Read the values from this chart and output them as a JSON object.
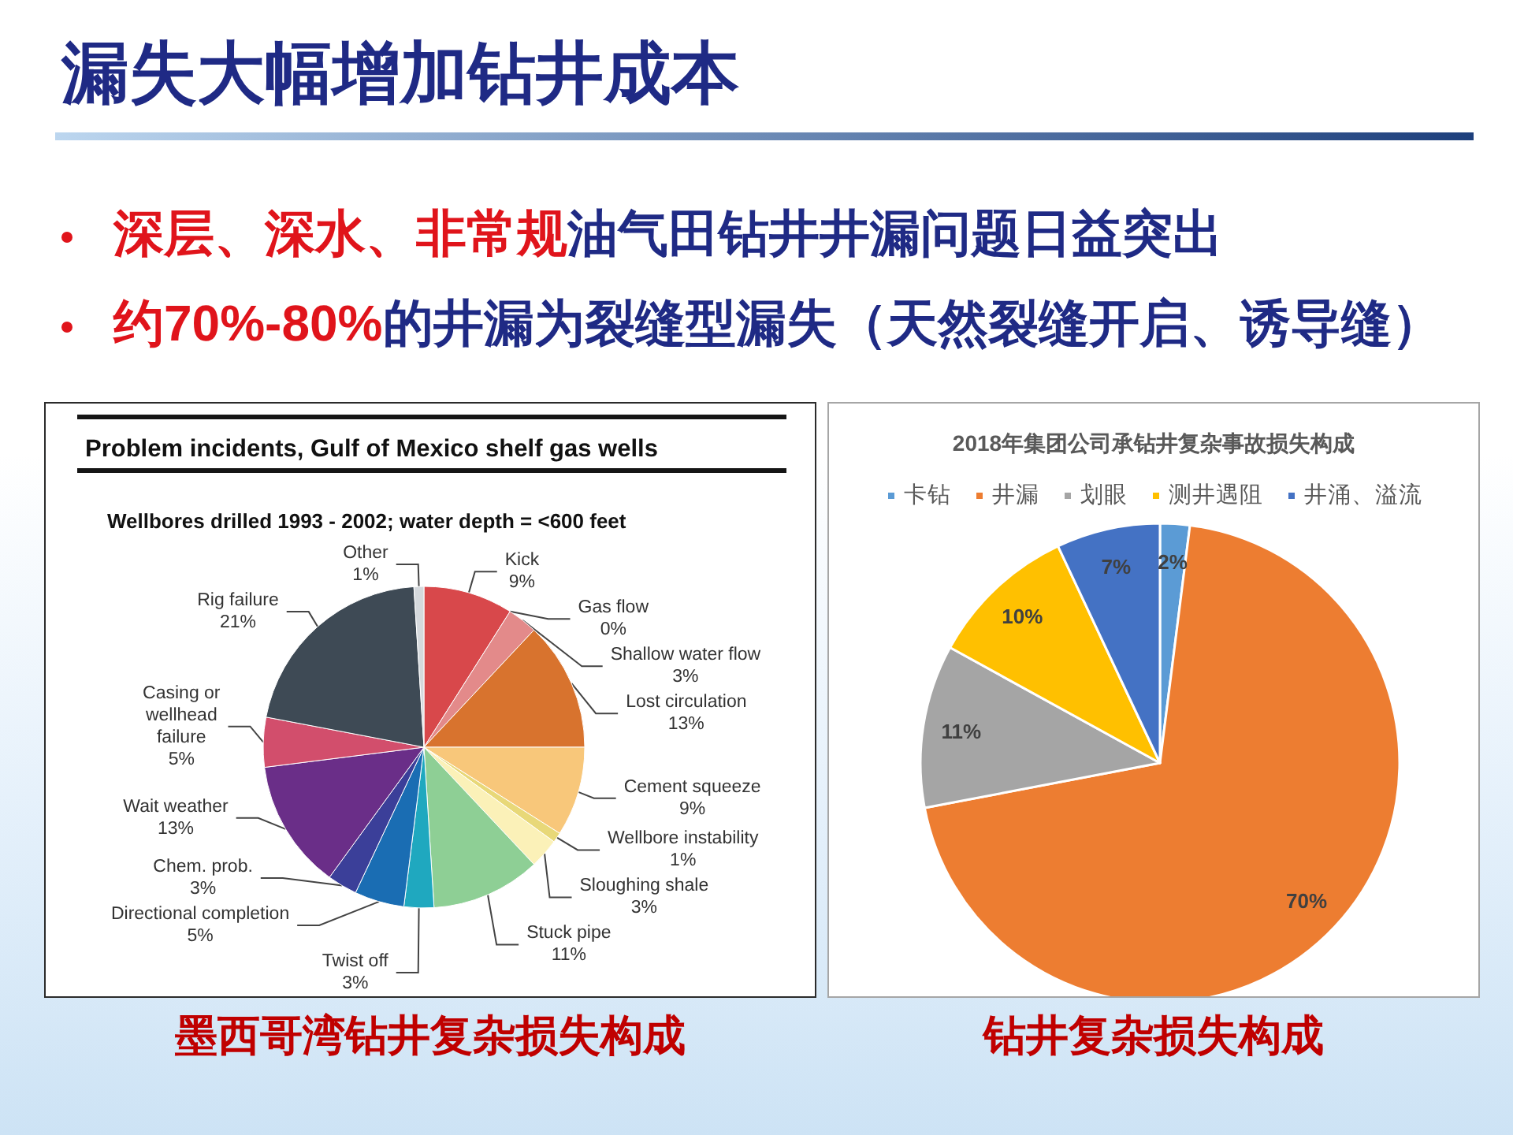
{
  "chart_data": [
    {
      "type": "other",
      "title": "漏失大幅增加钻井成本",
      "annotations": [
        "深层、深水、非常规",
        "油气田钻井井漏问题日益突出",
        "约70%-80%",
        "的井漏为裂缝型漏失（天然裂缝开启、诱导缝）"
      ]
    },
    {
      "type": "pie",
      "title": "Problem incidents, Gulf of Mexico shelf gas wells",
      "subtitle": "Wellbores drilled 1993 - 2002; water depth = <600 feet",
      "categories": [
        "Kick",
        "Gas flow",
        "Shallow water flow",
        "Lost circulation",
        "Cement squeeze",
        "Wellbore instability",
        "Sloughing shale",
        "Stuck pipe",
        "Twist off",
        "Directional completion",
        "Chem. prob.",
        "Wait weather",
        "Casing or\nwellhead\nfailure",
        "Rig failure",
        "Other"
      ],
      "values": [
        9,
        0,
        3,
        13,
        9,
        1,
        3,
        11,
        3,
        5,
        3,
        13,
        5,
        21,
        1
      ],
      "value_labels": [
        "9%",
        "0%",
        "3%",
        "13%",
        "9%",
        "1%",
        "3%",
        "11%",
        "3%",
        "5%",
        "3%",
        "13%",
        "5%",
        "21%",
        "1%"
      ],
      "colors": [
        "#d8484b",
        "#c0303a",
        "#e38a8a",
        "#d8732e",
        "#f8c77a",
        "#e8d878",
        "#fbf1b8",
        "#8ecf95",
        "#1fa8bf",
        "#1a6db3",
        "#3b3f99",
        "#6a2e88",
        "#d24e6c",
        "#3e4a55",
        "#d5d9dd"
      ],
      "annotations": [
        "墨西哥湾钻井复杂损失构成"
      ]
    },
    {
      "type": "pie",
      "title": "2018年集团公司承钻井复杂事故损失构成",
      "categories": [
        "卡钻",
        "井漏",
        "划眼",
        "测井遇阻",
        "井涌、溢流"
      ],
      "values": [
        2,
        70,
        11,
        10,
        7
      ],
      "value_labels": [
        "2%",
        "70%",
        "11%",
        "10%",
        "7%"
      ],
      "colors": [
        "#5b9bd5",
        "#ed7d31",
        "#a5a5a5",
        "#ffc000",
        "#4472c4"
      ],
      "legend": "top",
      "annotations": [
        "钻井复杂损失构成"
      ]
    }
  ]
}
